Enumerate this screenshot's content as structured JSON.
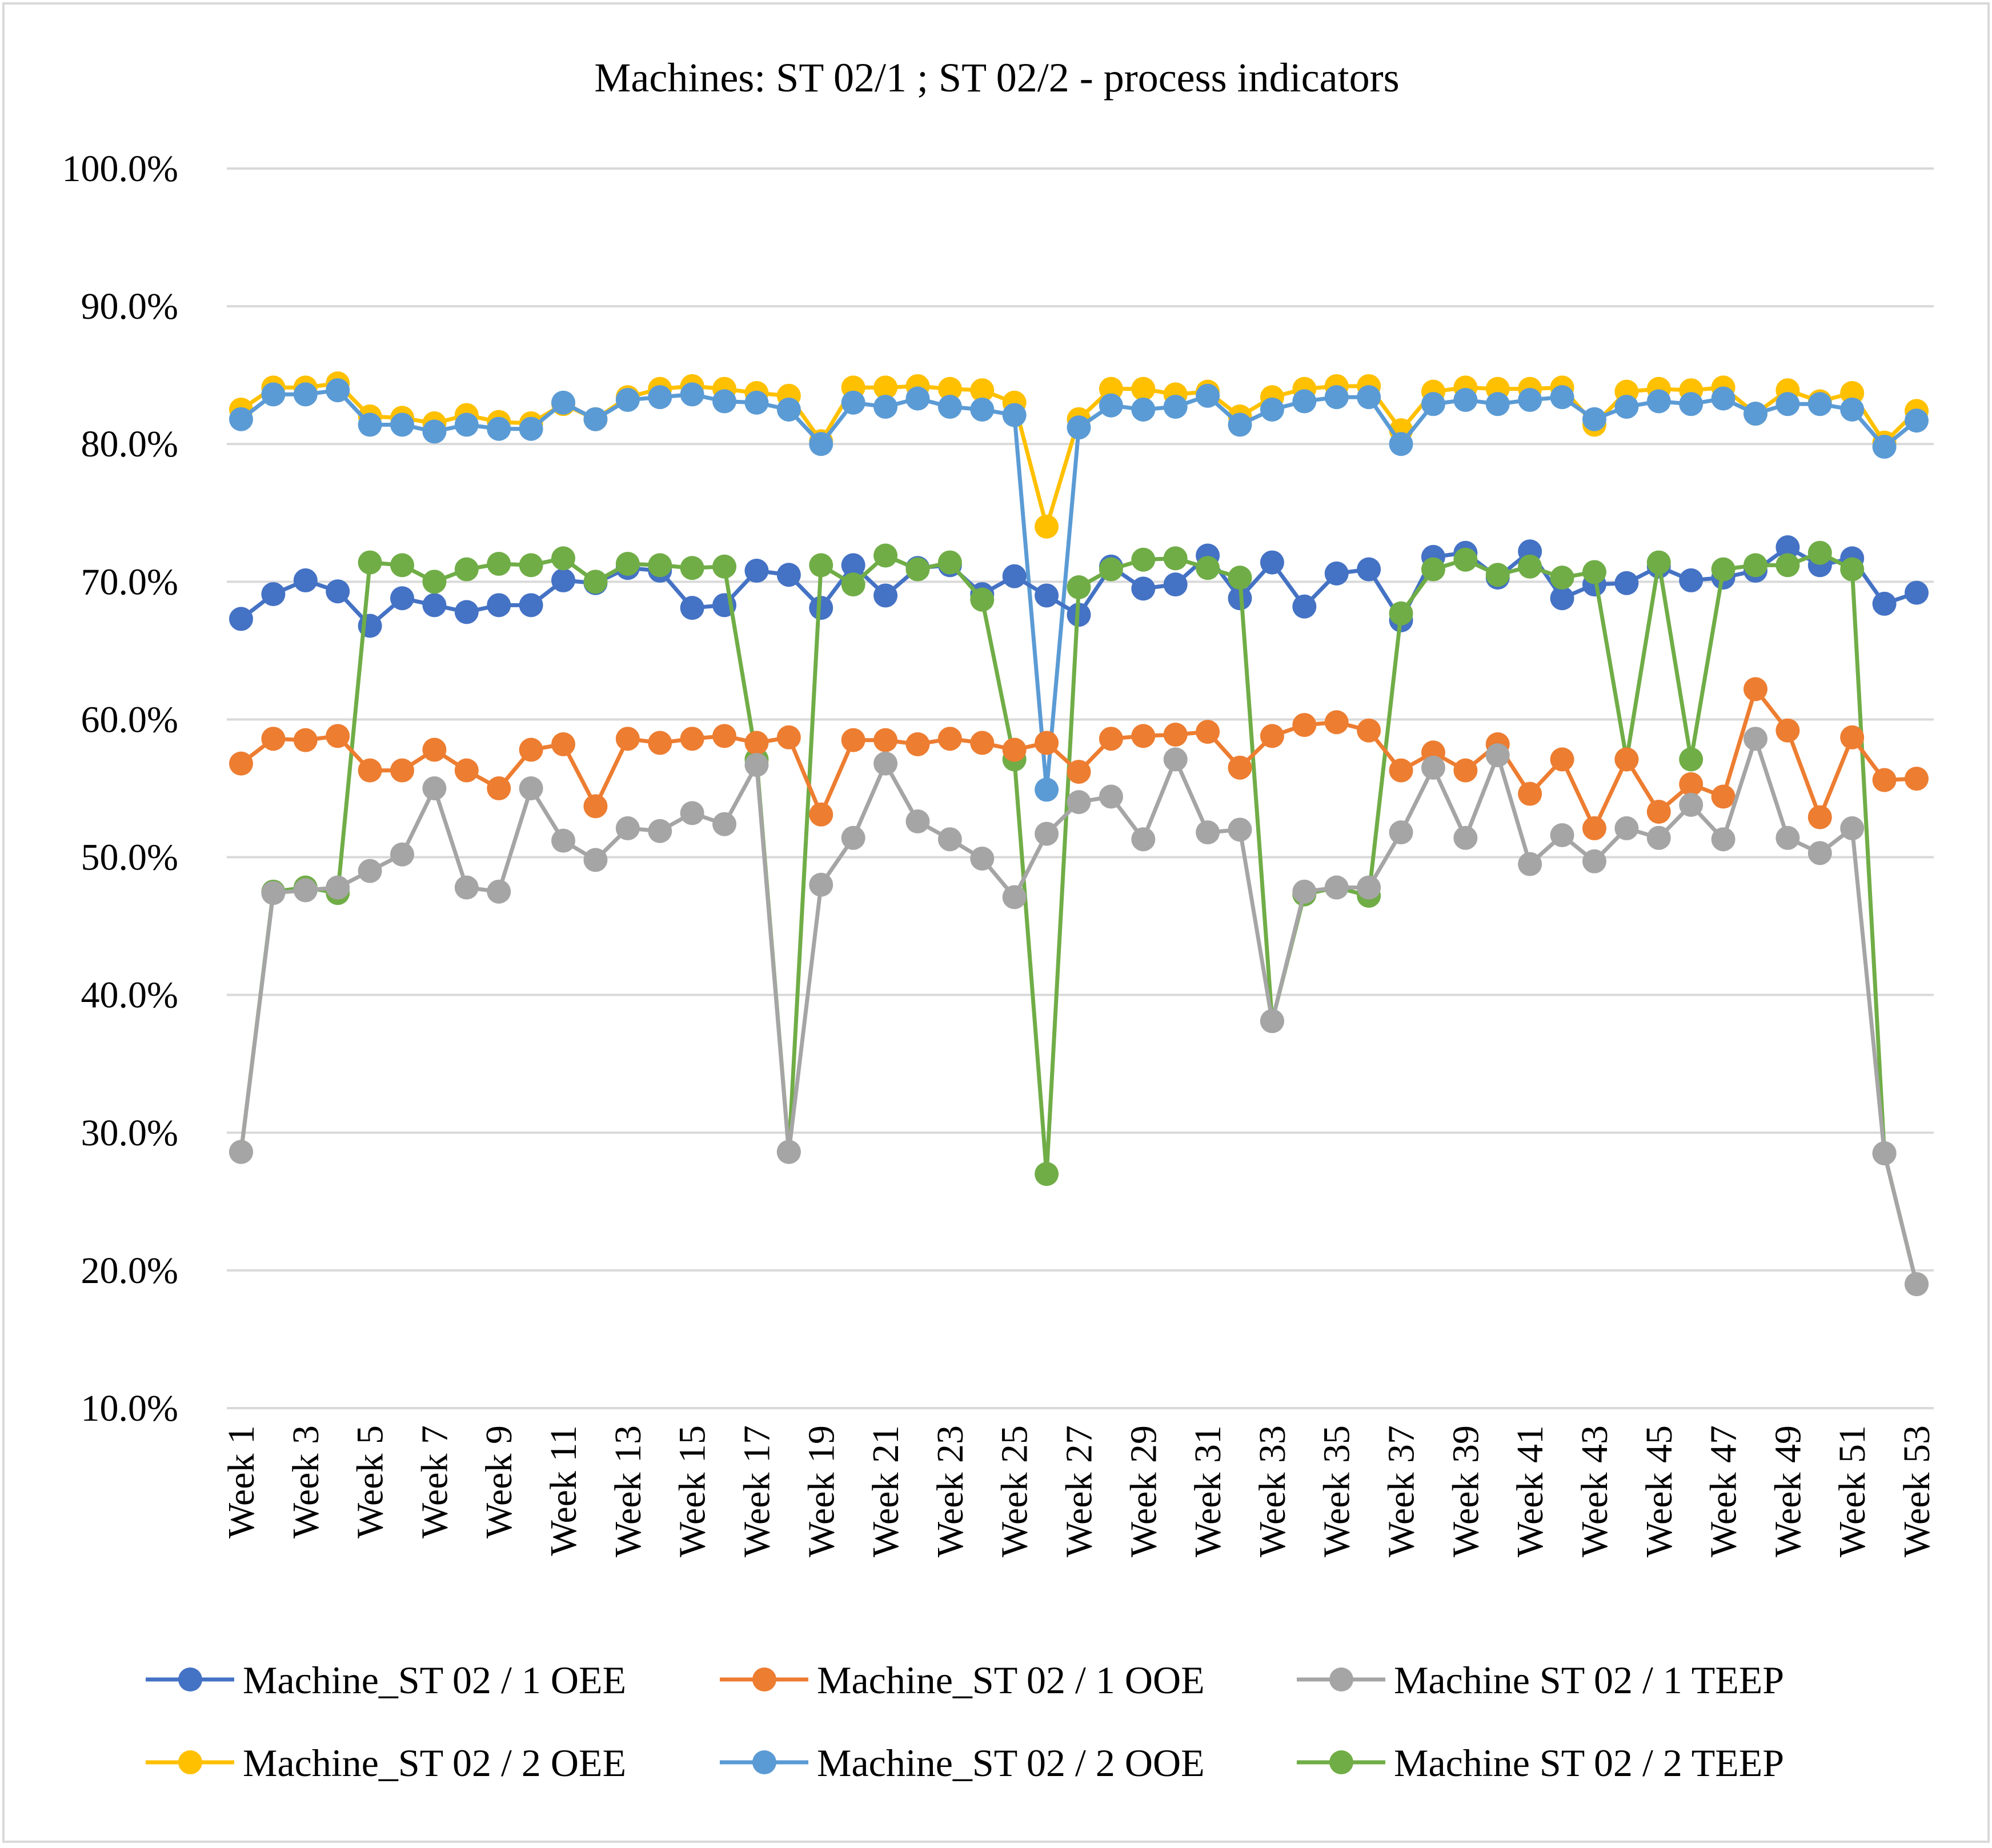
{
  "chart_data": {
    "type": "line",
    "title": "Machines: ST 02/1 ; ST 02/2 - process indicators",
    "xlabel": "",
    "ylabel": "",
    "ylim": [
      0.1,
      1.0
    ],
    "y_ticks": [
      "10.0%",
      "20.0%",
      "30.0%",
      "40.0%",
      "50.0%",
      "60.0%",
      "70.0%",
      "80.0%",
      "90.0%",
      "100.0%"
    ],
    "grid": true,
    "legend_position": "bottom",
    "categories": [
      "Week 1",
      "Week 2",
      "Week 3",
      "Week 4",
      "Week 5",
      "Week 6",
      "Week 7",
      "Week 8",
      "Week 9",
      "Week 10",
      "Week 11",
      "Week 12",
      "Week 13",
      "Week 14",
      "Week 15",
      "Week 16",
      "Week 17",
      "Week 18",
      "Week 19",
      "Week 20",
      "Week 21",
      "Week 22",
      "Week 23",
      "Week 24",
      "Week 25",
      "Week 26",
      "Week 27",
      "Week 28",
      "Week 29",
      "Week 30",
      "Week 31",
      "Week 32",
      "Week 33",
      "Week 34",
      "Week 35",
      "Week 36",
      "Week 37",
      "Week 38",
      "Week 39",
      "Week 40",
      "Week 41",
      "Week 42",
      "Week 43",
      "Week 44",
      "Week 45",
      "Week 46",
      "Week 47",
      "Week 48",
      "Week 49",
      "Week 50",
      "Week 51",
      "Week 52",
      "Week 53"
    ],
    "visible_tick_labels": [
      "Week 1",
      "Week 3",
      "Week 5",
      "Week 7",
      "Week 9",
      "Week 11",
      "Week 13",
      "Week 15",
      "Week 17",
      "Week 19",
      "Week 21",
      "Week 23",
      "Week 25",
      "Week 27",
      "Week 29",
      "Week 31",
      "Week 33",
      "Week 35",
      "Week 37",
      "Week 39",
      "Week 41",
      "Week 43",
      "Week 45",
      "Week 47",
      "Week 49",
      "Week 51",
      "Week 53"
    ],
    "series": [
      {
        "name": "Machine_ST 02 / 2 OEE",
        "color": "#FFC000",
        "values": [
          0.825,
          0.841,
          0.841,
          0.844,
          0.82,
          0.819,
          0.815,
          0.821,
          0.816,
          0.815,
          0.829,
          0.818,
          0.834,
          0.84,
          0.842,
          0.84,
          0.837,
          0.835,
          0.802,
          0.841,
          0.841,
          0.842,
          0.84,
          0.839,
          0.83,
          0.74,
          0.818,
          0.84,
          0.84,
          0.836,
          0.838,
          0.82,
          0.834,
          0.84,
          0.842,
          0.842,
          0.81,
          0.838,
          0.841,
          0.84,
          0.84,
          0.841,
          0.814,
          0.838,
          0.84,
          0.839,
          0.841,
          0.822,
          0.839,
          0.831,
          0.837,
          0.801,
          0.824
        ]
      },
      {
        "name": "Machine_ST 02 / 2 OOE",
        "color": "#5B9BD5",
        "values": [
          0.818,
          0.836,
          0.836,
          0.839,
          0.814,
          0.814,
          0.809,
          0.814,
          0.811,
          0.811,
          0.83,
          0.818,
          0.832,
          0.834,
          0.836,
          0.831,
          0.83,
          0.825,
          0.8,
          0.83,
          0.827,
          0.833,
          0.827,
          0.825,
          0.821,
          0.549,
          0.812,
          0.828,
          0.825,
          0.827,
          0.835,
          0.814,
          0.825,
          0.831,
          0.834,
          0.834,
          0.8,
          0.829,
          0.832,
          0.829,
          0.832,
          0.834,
          0.818,
          0.827,
          0.831,
          0.829,
          0.833,
          0.822,
          0.829,
          0.829,
          0.825,
          0.798,
          0.817
        ]
      },
      {
        "name": "Machine_ST 02 / 1 OEE",
        "color": "#4472C4",
        "values": [
          0.673,
          0.691,
          0.701,
          0.693,
          0.668,
          0.688,
          0.683,
          0.678,
          0.683,
          0.683,
          0.701,
          0.699,
          0.71,
          0.708,
          0.681,
          0.683,
          0.708,
          0.705,
          0.681,
          0.712,
          0.69,
          0.71,
          0.712,
          0.691,
          0.704,
          0.69,
          0.676,
          0.711,
          0.695,
          0.698,
          0.719,
          0.688,
          0.714,
          0.682,
          0.706,
          0.709,
          0.672,
          0.718,
          0.721,
          0.703,
          0.722,
          0.688,
          0.698,
          0.699,
          0.711,
          0.701,
          0.703,
          0.708,
          0.725,
          0.712,
          0.717,
          0.684,
          0.692
        ]
      },
      {
        "name": "Machine ST 02 / 2 TEEP",
        "color": "#70AD47",
        "values": [
          0.286,
          0.475,
          0.478,
          0.474,
          0.714,
          0.712,
          0.7,
          0.709,
          0.713,
          0.712,
          0.717,
          0.7,
          0.713,
          0.712,
          0.71,
          0.711,
          0.571,
          0.286,
          0.712,
          0.698,
          0.719,
          0.709,
          0.714,
          0.687,
          0.571,
          0.27,
          0.696,
          0.709,
          0.716,
          0.717,
          0.71,
          0.703,
          0.381,
          0.473,
          0.478,
          0.472,
          0.677,
          0.709,
          0.716,
          0.705,
          0.711,
          0.703,
          0.707,
          0.571,
          0.714,
          0.571,
          0.709,
          0.712,
          0.712,
          0.721,
          0.709,
          0.285,
          0.19
        ]
      },
      {
        "name": "Machine_ST 02 / 1 OOE",
        "color": "#ED7D31",
        "values": [
          0.568,
          0.586,
          0.585,
          0.588,
          0.563,
          0.563,
          0.578,
          0.563,
          0.55,
          0.578,
          0.582,
          0.537,
          0.586,
          0.583,
          0.586,
          0.588,
          0.583,
          0.587,
          0.531,
          0.585,
          0.585,
          0.582,
          0.586,
          0.583,
          0.578,
          0.583,
          0.562,
          0.586,
          0.588,
          0.589,
          0.591,
          0.565,
          0.588,
          0.596,
          0.598,
          0.592,
          0.563,
          0.576,
          0.563,
          0.582,
          0.546,
          0.571,
          0.521,
          0.571,
          0.533,
          0.553,
          0.544,
          0.622,
          0.592,
          0.529,
          0.587,
          0.556,
          0.557
        ]
      },
      {
        "name": "Machine ST 02 / 1 TEEP",
        "color": "#A5A5A5",
        "values": [
          0.286,
          0.474,
          0.476,
          0.478,
          0.49,
          0.502,
          0.55,
          0.478,
          0.475,
          0.55,
          0.512,
          0.498,
          0.521,
          0.519,
          0.532,
          0.524,
          0.567,
          0.286,
          0.48,
          0.514,
          0.568,
          0.526,
          0.513,
          0.499,
          0.471,
          0.517,
          0.54,
          0.544,
          0.513,
          0.571,
          0.518,
          0.52,
          0.381,
          0.475,
          0.478,
          0.478,
          0.518,
          0.565,
          0.514,
          0.574,
          0.495,
          0.516,
          0.497,
          0.521,
          0.514,
          0.538,
          0.513,
          0.586,
          0.514,
          0.503,
          0.521,
          0.285,
          0.19
        ]
      }
    ],
    "legend": [
      {
        "name": "Machine_ST 02 / 1 OEE",
        "color": "#4472C4"
      },
      {
        "name": "Machine_ST 02 / 1 OOE",
        "color": "#ED7D31"
      },
      {
        "name": "Machine ST 02 / 1 TEEP",
        "color": "#A5A5A5"
      },
      {
        "name": "Machine_ST 02 / 2 OEE",
        "color": "#FFC000"
      },
      {
        "name": "Machine_ST 02 / 2 OOE",
        "color": "#5B9BD5"
      },
      {
        "name": "Machine ST 02 / 2 TEEP",
        "color": "#70AD47"
      }
    ]
  }
}
